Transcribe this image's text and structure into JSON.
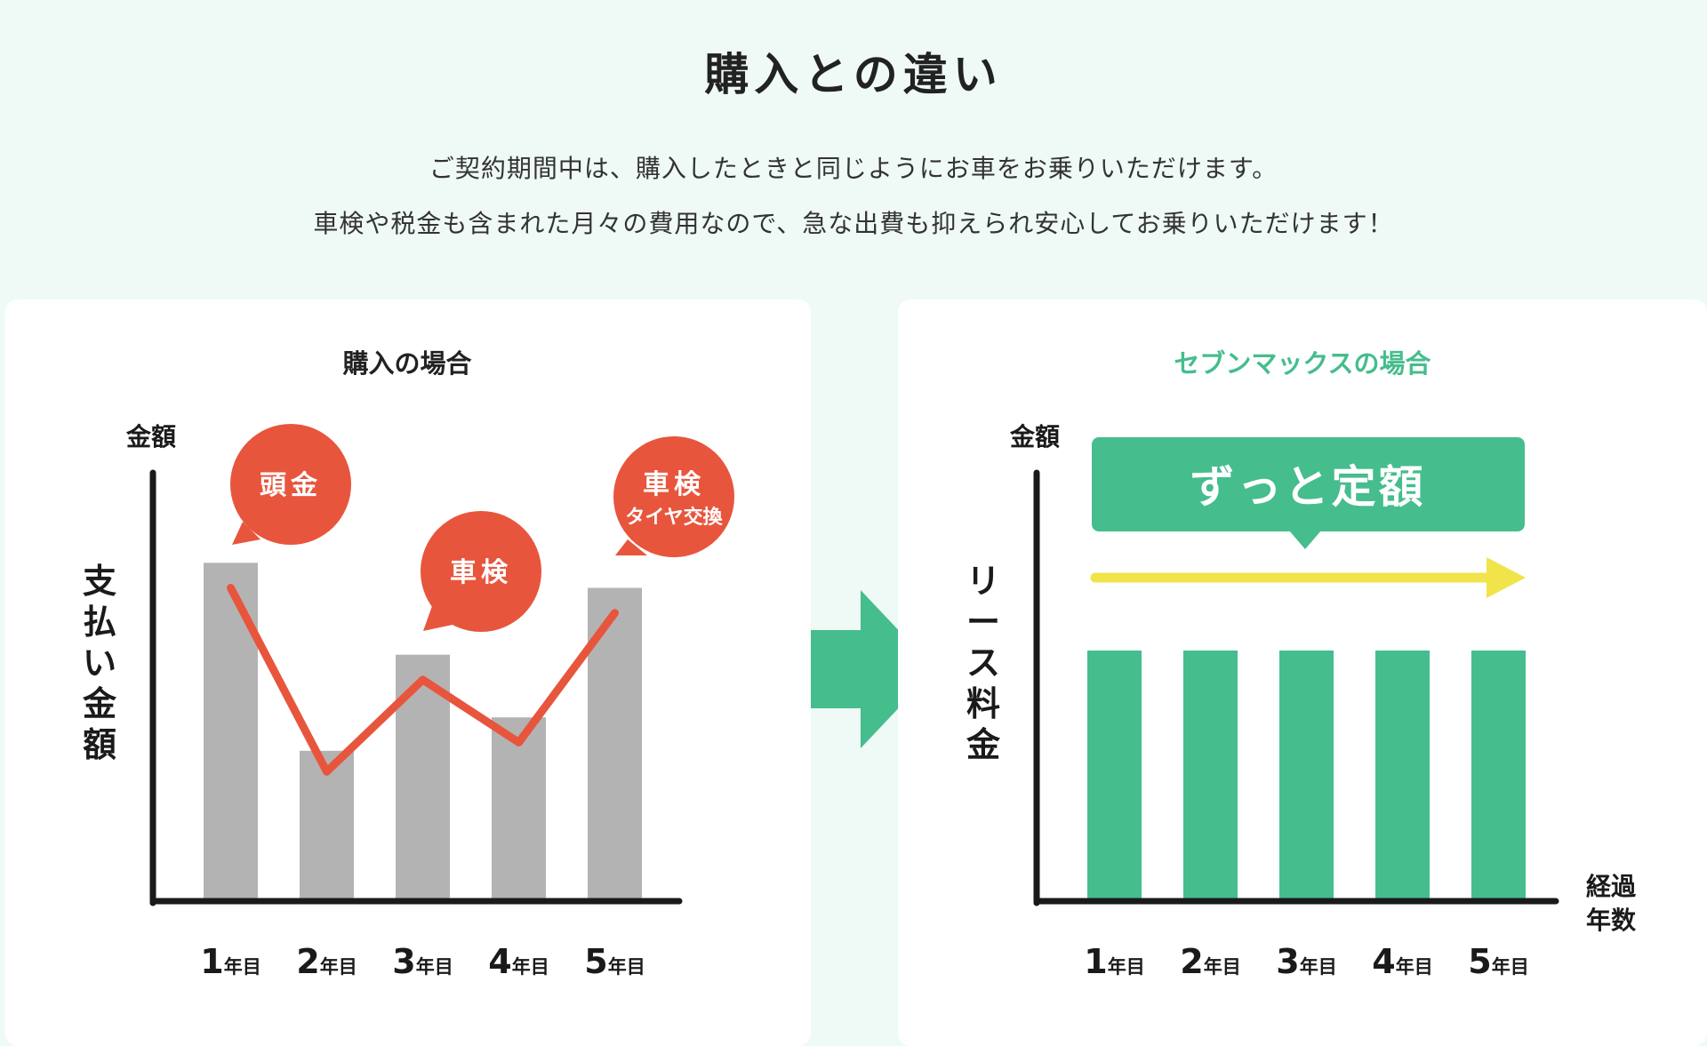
{
  "header": {
    "title": "購入との違い",
    "description_line1": "ご契約期間中は、購入したときと同じようにお車をお乗りいただけます。",
    "description_line2": "車検や税金も含まれた月々の費用なので、急な出費も抑えられ安心してお乗りいただけます！"
  },
  "colors": {
    "background": "#effaf6",
    "gray_bar": "#b3b3b3",
    "orange": "#e8553d",
    "green": "#45bd8d",
    "yellow": "#f0e44a",
    "axis": "#1a1a1a"
  },
  "chart_data": [
    {
      "type": "bar",
      "title": "購入の場合",
      "ylabel_top": "金額",
      "ylabel_side": [
        "支",
        "払",
        "い",
        "金",
        "額"
      ],
      "categories": [
        {
          "num": "1",
          "unit": "年目"
        },
        {
          "num": "2",
          "unit": "年目"
        },
        {
          "num": "3",
          "unit": "年目"
        },
        {
          "num": "4",
          "unit": "年目"
        },
        {
          "num": "5",
          "unit": "年目"
        }
      ],
      "values": [
        81,
        36,
        59,
        44,
        75
      ],
      "line_values": [
        75,
        31,
        53,
        38,
        69
      ],
      "ylim": [
        0,
        100
      ],
      "annotations": [
        {
          "lines": [
            "頭金"
          ],
          "category_index": 0
        },
        {
          "lines": [
            "車検"
          ],
          "category_index": 2
        },
        {
          "lines": [
            "車検",
            "タイヤ交換"
          ],
          "category_index": 4
        }
      ]
    },
    {
      "type": "bar",
      "title": "セブンマックスの場合",
      "ylabel_top": "金額",
      "ylabel_side": [
        "リ",
        "ー",
        "ス",
        "料",
        "金"
      ],
      "xlabel_lines": [
        "経過",
        "年数"
      ],
      "categories": [
        {
          "num": "1",
          "unit": "年目"
        },
        {
          "num": "2",
          "unit": "年目"
        },
        {
          "num": "3",
          "unit": "年目"
        },
        {
          "num": "4",
          "unit": "年目"
        },
        {
          "num": "5",
          "unit": "年目"
        }
      ],
      "values": [
        60,
        60,
        60,
        60,
        60
      ],
      "ylim": [
        0,
        100
      ],
      "banner": "ずっと定額"
    }
  ]
}
